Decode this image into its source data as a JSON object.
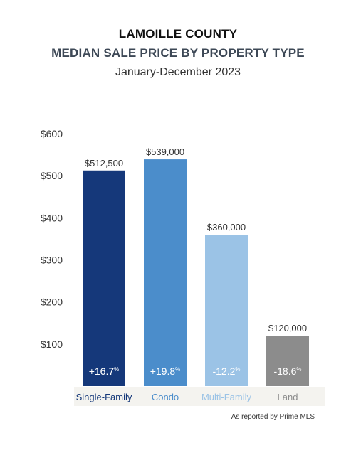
{
  "header": {
    "title": "LAMOILLE COUNTY",
    "subtitle": "MEDIAN SALE PRICE BY PROPERTY TYPE",
    "period": "January-December 2023"
  },
  "chart_data": {
    "type": "bar",
    "title": "MEDIAN SALE PRICE BY PROPERTY TYPE",
    "categories": [
      "Single-Family",
      "Condo",
      "Multi-Family",
      "Land"
    ],
    "values": [
      512.5,
      539,
      360,
      120
    ],
    "value_labels": [
      "$512,500",
      "$539,000",
      "$360,000",
      "$120,000"
    ],
    "change_labels": [
      "+16.7",
      "+19.8",
      "-12.2",
      "-18.6"
    ],
    "change_unit": "%",
    "y_ticks": [
      100,
      200,
      300,
      400,
      500,
      600
    ],
    "y_tick_labels": [
      "$100",
      "$200",
      "$300",
      "$400",
      "$500",
      "$600"
    ],
    "ylim": [
      0,
      600
    ],
    "grid": false,
    "bar_colors": [
      "#15387a",
      "#4b8dcb",
      "#9bc3e6",
      "#8c8c8c"
    ],
    "category_label_colors": [
      "#15387a",
      "#4b8dcb",
      "#9bc3e6",
      "#8c8c8c"
    ]
  },
  "footer": {
    "source": "As reported by Prime MLS"
  }
}
